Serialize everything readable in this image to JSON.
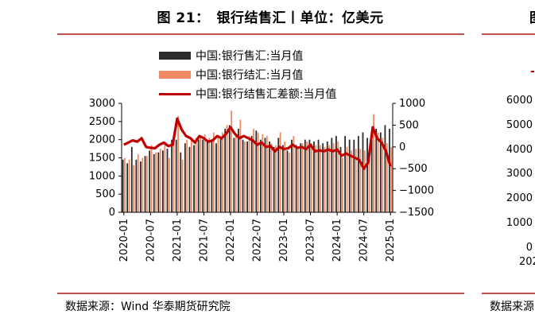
{
  "left": {
    "title": "图 21：　银行结售汇丨单位：亿美元",
    "source": "数据来源：Wind 华泰期货研究院"
  },
  "right": {
    "title_fragment": "图",
    "source_fragment": "数据来源",
    "legend_fragment": "-",
    "left_axis_ticks": [
      "6000",
      "5000",
      "4000",
      "3000",
      "2000",
      "1000",
      "0"
    ],
    "x_tick_fragment": "202"
  },
  "colors": {
    "sell_bar": "#2b2b2b",
    "settle_bar": "#f08a64",
    "diff_line": "#c00000",
    "rule": "#c0504d"
  },
  "chart_data": {
    "type": "bar",
    "legend": [
      {
        "name": "中国:银行售汇:当月值",
        "kind": "bar"
      },
      {
        "name": "中国:银行结汇:当月值",
        "kind": "bar"
      },
      {
        "name": "中国:银行结售汇差额:当月值",
        "kind": "line"
      }
    ],
    "x_tick_labels": [
      "2020-01",
      "2020-07",
      "2021-01",
      "2021-07",
      "2022-01",
      "2022-07",
      "2023-01",
      "2023-07",
      "2024-01",
      "2024-07",
      "2025-01"
    ],
    "left_axis": {
      "ylim": [
        0,
        3000
      ],
      "ticks": [
        "3000",
        "2500",
        "2000",
        "1500",
        "1000",
        "500",
        "0"
      ]
    },
    "right_axis": {
      "ylim": [
        -1500,
        1000
      ],
      "ticks": [
        "1000",
        "500",
        "0",
        "−500",
        "−1000",
        "−1500"
      ]
    },
    "months": [
      "2020-01",
      "2020-02",
      "2020-03",
      "2020-04",
      "2020-05",
      "2020-06",
      "2020-07",
      "2020-08",
      "2020-09",
      "2020-10",
      "2020-11",
      "2020-12",
      "2021-01",
      "2021-02",
      "2021-03",
      "2021-04",
      "2021-05",
      "2021-06",
      "2021-07",
      "2021-08",
      "2021-09",
      "2021-10",
      "2021-11",
      "2021-12",
      "2022-01",
      "2022-02",
      "2022-03",
      "2022-04",
      "2022-05",
      "2022-06",
      "2022-07",
      "2022-08",
      "2022-09",
      "2022-10",
      "2022-11",
      "2022-12",
      "2023-01",
      "2023-02",
      "2023-03",
      "2023-04",
      "2023-05",
      "2023-06",
      "2023-07",
      "2023-08",
      "2023-09",
      "2023-10",
      "2023-11",
      "2023-12",
      "2024-01",
      "2024-02",
      "2024-03",
      "2024-04",
      "2024-05",
      "2024-06",
      "2024-07",
      "2024-08",
      "2024-09",
      "2024-10",
      "2024-11",
      "2024-12",
      "2025-01"
    ],
    "series": [
      {
        "name": "中国:银行售汇:当月值",
        "axis": "left",
        "values": [
          1450,
          1350,
          1800,
          1450,
          1400,
          1550,
          1700,
          1600,
          1650,
          1700,
          1750,
          2000,
          2000,
          1650,
          1900,
          1800,
          1850,
          2000,
          2000,
          1950,
          2000,
          1900,
          2050,
          2300,
          2400,
          2050,
          2300,
          2000,
          1950,
          2100,
          2250,
          2000,
          2050,
          1950,
          1800,
          2050,
          1850,
          1700,
          2000,
          1850,
          1900,
          2000,
          2000,
          1950,
          2000,
          1900,
          1950,
          2050,
          2100,
          1800,
          2100,
          2000,
          2000,
          2100,
          2200,
          2050,
          2250,
          2300,
          2200,
          2400,
          2300
        ]
      },
      {
        "name": "中国:银行结汇:当月值",
        "axis": "left",
        "values": [
          1500,
          1450,
          1300,
          1600,
          1500,
          1550,
          1850,
          1650,
          1750,
          1850,
          1500,
          2000,
          2650,
          1450,
          2000,
          2000,
          2050,
          2100,
          2150,
          2050,
          2200,
          2100,
          2200,
          2400,
          2800,
          2100,
          2550,
          1950,
          2100,
          2300,
          2200,
          2150,
          2100,
          1900,
          1850,
          2200,
          1950,
          1650,
          2100,
          1800,
          1900,
          1950,
          1900,
          1850,
          1850,
          1800,
          1850,
          1900,
          1950,
          1500,
          1800,
          1700,
          1750,
          1750,
          1700,
          1600,
          2700,
          2200,
          2050,
          1900,
          1800
        ]
      },
      {
        "name": "中国:银行结售汇差额:当月值",
        "axis": "right",
        "values": [
          50,
          100,
          150,
          120,
          200,
          0,
          -20,
          -30,
          50,
          100,
          20,
          50,
          650,
          400,
          250,
          200,
          100,
          250,
          200,
          120,
          150,
          250,
          200,
          300,
          450,
          300,
          200,
          250,
          200,
          150,
          50,
          100,
          0,
          20,
          -100,
          0,
          -50,
          -30,
          50,
          -20,
          0,
          -50,
          50,
          -100,
          -80,
          -100,
          -60,
          -100,
          -60,
          -200,
          -150,
          -200,
          -250,
          -300,
          -500,
          -350,
          450,
          200,
          100,
          -100,
          -450
        ]
      }
    ]
  }
}
